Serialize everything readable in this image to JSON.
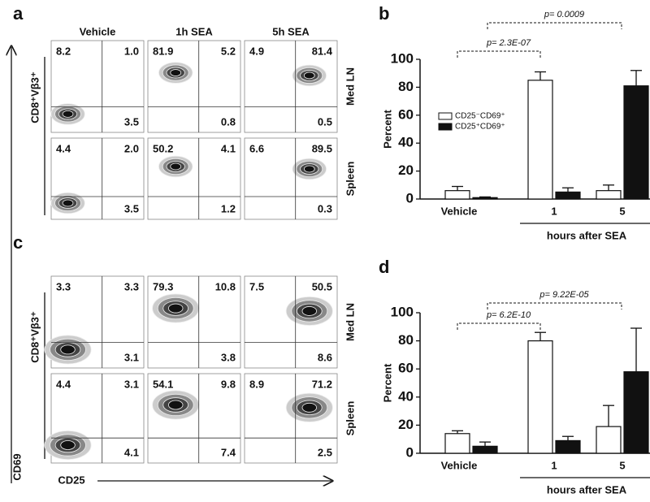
{
  "panel_labels": [
    "a",
    "b",
    "c",
    "d"
  ],
  "columns": [
    "Vehicle",
    "1h SEA",
    "5h SEA"
  ],
  "x_axis": "CD25",
  "y_axis": "CD69",
  "flow": [
    {
      "y_label": "CD8⁺Vβ3⁺",
      "rows": [
        {
          "name": "Med LN",
          "plots": [
            [
              "8.2",
              "1.0",
              "3.5"
            ],
            [
              "81.9",
              "5.2",
              "0.8"
            ],
            [
              "4.9",
              "81.4",
              "0.5"
            ]
          ]
        },
        {
          "name": "Spleen",
          "plots": [
            [
              "4.4",
              "2.0",
              "3.5"
            ],
            [
              "50.2",
              "4.1",
              "1.2"
            ],
            [
              "6.6",
              "89.5",
              "0.3"
            ]
          ]
        }
      ]
    },
    {
      "y_label": "CD8⁺Vβ3⁺",
      "rows": [
        {
          "name": "Med LN",
          "plots": [
            [
              "3.3",
              "3.3",
              "3.1"
            ],
            [
              "79.3",
              "10.8",
              "3.8"
            ],
            [
              "7.5",
              "50.5",
              "8.6"
            ]
          ]
        },
        {
          "name": "Spleen",
          "plots": [
            [
              "4.4",
              "3.1",
              "4.1"
            ],
            [
              "54.1",
              "9.8",
              "7.4"
            ],
            [
              "8.9",
              "71.2",
              "2.5"
            ]
          ]
        }
      ]
    }
  ],
  "chart_data": [
    {
      "type": "bar",
      "ylabel": "Percent",
      "xlabel": "hours after SEA",
      "categories": [
        "Vehicle",
        "1",
        "5"
      ],
      "series": [
        {
          "name": "CD25⁻CD69⁺",
          "color": "#ffffff",
          "values": [
            6,
            85,
            6
          ],
          "errors": [
            3,
            6,
            4
          ]
        },
        {
          "name": "CD25⁺CD69⁺",
          "color": "#111111",
          "values": [
            1,
            5,
            81
          ],
          "errors": [
            0.5,
            3,
            11
          ]
        }
      ],
      "legend": "left",
      "ylim": [
        0,
        100
      ],
      "yticks": [
        0,
        20,
        40,
        60,
        80,
        100
      ],
      "annotations": [
        "p= 2.3E-07",
        "p= 0.0009"
      ]
    },
    {
      "type": "bar",
      "ylabel": "Percent",
      "xlabel": "hours after SEA",
      "categories": [
        "Vehicle",
        "1",
        "5"
      ],
      "series": [
        {
          "color": "#ffffff",
          "values": [
            14,
            80,
            19
          ],
          "errors": [
            2,
            6,
            15
          ]
        },
        {
          "color": "#111111",
          "values": [
            5,
            9,
            58
          ],
          "errors": [
            3,
            3,
            31
          ]
        }
      ],
      "ylim": [
        0,
        100
      ],
      "yticks": [
        0,
        20,
        40,
        60,
        80,
        100
      ],
      "annotations": [
        "p= 6.2E-10",
        "p= 9.22E-05"
      ]
    }
  ]
}
